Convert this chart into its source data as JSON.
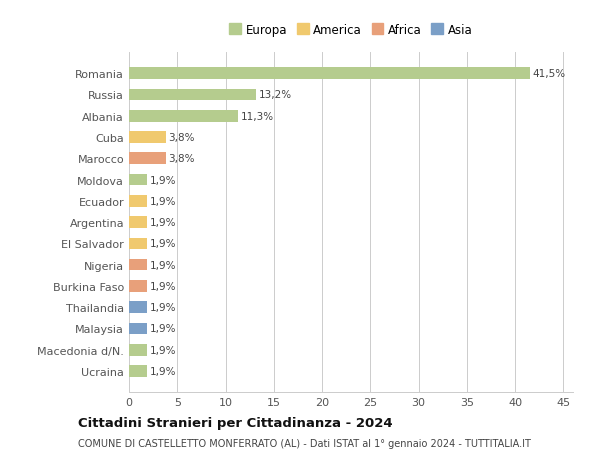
{
  "countries": [
    "Romania",
    "Russia",
    "Albania",
    "Cuba",
    "Marocco",
    "Moldova",
    "Ecuador",
    "Argentina",
    "El Salvador",
    "Nigeria",
    "Burkina Faso",
    "Thailandia",
    "Malaysia",
    "Macedonia d/N.",
    "Ucraina"
  ],
  "values": [
    41.5,
    13.2,
    11.3,
    3.8,
    3.8,
    1.9,
    1.9,
    1.9,
    1.9,
    1.9,
    1.9,
    1.9,
    1.9,
    1.9,
    1.9
  ],
  "labels": [
    "41,5%",
    "13,2%",
    "11,3%",
    "3,8%",
    "3,8%",
    "1,9%",
    "1,9%",
    "1,9%",
    "1,9%",
    "1,9%",
    "1,9%",
    "1,9%",
    "1,9%",
    "1,9%",
    "1,9%"
  ],
  "continents": [
    "Europa",
    "Europa",
    "Europa",
    "America",
    "Africa",
    "Europa",
    "America",
    "America",
    "America",
    "Africa",
    "Africa",
    "Asia",
    "Asia",
    "Europa",
    "Europa"
  ],
  "colors": {
    "Europa": "#b5cc8e",
    "America": "#f0c96e",
    "Africa": "#e8a07a",
    "Asia": "#7b9fc7"
  },
  "legend_items": [
    "Europa",
    "America",
    "Africa",
    "Asia"
  ],
  "legend_colors": [
    "#b5cc8e",
    "#f0c96e",
    "#e8a07a",
    "#7b9fc7"
  ],
  "xlim": [
    0,
    46
  ],
  "xticks": [
    0,
    5,
    10,
    15,
    20,
    25,
    30,
    35,
    40,
    45
  ],
  "title": "Cittadini Stranieri per Cittadinanza - 2024",
  "subtitle": "COMUNE DI CASTELLETTO MONFERRATO (AL) - Dati ISTAT al 1° gennaio 2024 - TUTTITALIA.IT",
  "background_color": "#ffffff",
  "grid_color": "#cccccc",
  "bar_height": 0.55
}
